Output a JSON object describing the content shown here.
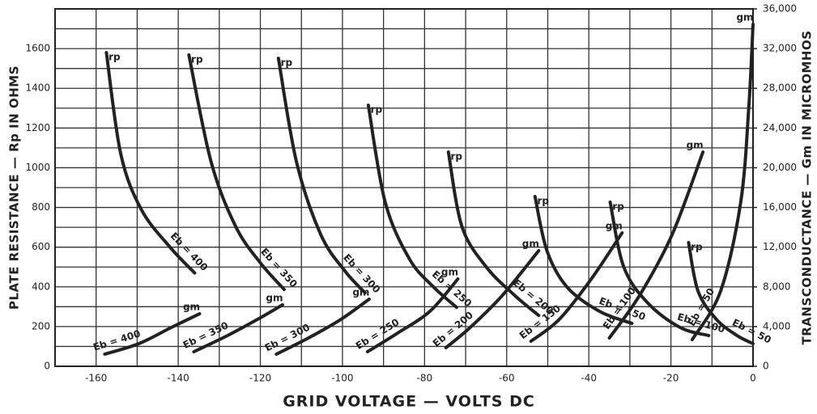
{
  "chart_data": {
    "type": "line",
    "xlabel": "GRID VOLTAGE — VOLTS DC",
    "ylabel": "PLATE RESISTANCE — Rp IN OHMS",
    "y2label": "TRANSCONDUCTANCE — Gm IN MICROMHOS",
    "rp_label": "rp",
    "gm_label": "gm",
    "xlim": [
      -170,
      0
    ],
    "xticks": [
      -160,
      -140,
      -120,
      -100,
      -80,
      -60,
      -40,
      -20,
      0
    ],
    "ylim": [
      0,
      1800
    ],
    "yticks": [
      0,
      200,
      400,
      600,
      800,
      1000,
      1200,
      1400,
      1600
    ],
    "y2lim": [
      0,
      36000
    ],
    "y2ticks": [
      0,
      {
        "value": 4000,
        "label": "4,000"
      },
      {
        "value": 8000,
        "label": "8,000"
      },
      {
        "value": 12000,
        "label": "12,000"
      },
      {
        "value": 16000,
        "label": "16,000"
      },
      {
        "value": 20000,
        "label": "20,000"
      },
      {
        "value": 24000,
        "label": "24,000"
      },
      {
        "value": 28000,
        "label": "28,000"
      },
      {
        "value": 32000,
        "label": "32,000"
      },
      {
        "value": 36000,
        "label": "36,000"
      }
    ],
    "grid": true,
    "series": [
      {
        "name": "Eb = 400",
        "color": "#222222",
        "axis": "y",
        "x": [
          -157.5,
          -154,
          -149,
          -142,
          -136
        ],
        "values": [
          1580,
          1070,
          790,
          600,
          470
        ]
      },
      {
        "name": "Eb = 350",
        "color": "#222222",
        "axis": "y",
        "x": [
          -137.4,
          -132,
          -126,
          -120,
          -114.2
        ],
        "values": [
          1568,
          1030,
          704,
          521,
          387
        ]
      },
      {
        "name": "Eb = 300",
        "color": "#222222",
        "axis": "y",
        "x": [
          -115.6,
          -111.2,
          -105.3,
          -99.4,
          -94.5
        ],
        "values": [
          1551,
          1030,
          664,
          480,
          370
        ]
      },
      {
        "name": "Eb = 250",
        "color": "#222222",
        "axis": "y",
        "x": [
          -93.7,
          -89.6,
          -83.7,
          -77.8,
          -72.2
        ],
        "values": [
          1315,
          827,
          541,
          399,
          297
        ]
      },
      {
        "name": "Eb = 200",
        "color": "#222222",
        "axis": "y",
        "x": [
          -74.2,
          -70.9,
          -65,
          -58.1,
          -52.2
        ],
        "values": [
          1079,
          704,
          501,
          358,
          256
        ]
      },
      {
        "name": "Eb = 150",
        "color": "#222222",
        "axis": "y",
        "x": [
          -53.1,
          -50.2,
          -45.3,
          -37.4,
          -29.5
        ],
        "values": [
          855,
          582,
          399,
          277,
          216
        ]
      },
      {
        "name": "Eb = 100",
        "color": "#222222",
        "axis": "y",
        "x": [
          -34.8,
          -31.5,
          -25.6,
          -17.7,
          -10.8
        ],
        "values": [
          827,
          501,
          318,
          195,
          155
        ]
      },
      {
        "name": "Eb = 50",
        "color": "#222222",
        "axis": "y",
        "x": [
          -15.7,
          -13.4,
          -8.9,
          -3.9,
          0
        ],
        "values": [
          623,
          379,
          236,
          155,
          114
        ]
      },
      {
        "name": "Eb = 400",
        "color": "#222222",
        "axis": "y2",
        "x": [
          -157.9,
          -149.6,
          -141.7,
          -134.8
        ],
        "values": [
          1221,
          2280,
          3908,
          5292
        ]
      },
      {
        "name": "Eb = 350",
        "color": "#222222",
        "axis": "y2",
        "x": [
          -136.2,
          -128,
          -120,
          -114.6
        ],
        "values": [
          1466,
          3094,
          4885,
          6188
        ]
      },
      {
        "name": "Eb = 300",
        "color": "#222222",
        "axis": "y2",
        "x": [
          -116.1,
          -108.3,
          -100.4,
          -93.5
        ],
        "values": [
          1221,
          2850,
          4722,
          6758
        ]
      },
      {
        "name": "Eb = 250",
        "color": "#222222",
        "axis": "y2",
        "x": [
          -93.9,
          -86.6,
          -78.7,
          -71.9
        ],
        "values": [
          1466,
          3338,
          5537,
          8793
        ]
      },
      {
        "name": "Eb = 200",
        "color": "#222222",
        "axis": "y2",
        "x": [
          -74.8,
          -68.9,
          -61,
          -52.2
        ],
        "values": [
          1873,
          3908,
          7165,
          11643
        ]
      },
      {
        "name": "Eb = 150",
        "color": "#222222",
        "axis": "y2",
        "x": [
          -54.1,
          -47.2,
          -39.4,
          -31.9
        ],
        "values": [
          2524,
          4722,
          8793,
          13434
        ]
      },
      {
        "name": "Eb = 100",
        "color": "#222222",
        "axis": "y2",
        "x": [
          -35,
          -27.6,
          -19.7,
          -12.2
        ],
        "values": [
          2850,
          7165,
          13271,
          21576
        ]
      },
      {
        "name": "Eb = 50",
        "color": "#222222",
        "axis": "y2",
        "x": [
          -14.8,
          -7.9,
          -3,
          -1,
          0
        ],
        "values": [
          2687,
          7572,
          16528,
          26298,
          34440
        ]
      }
    ]
  }
}
